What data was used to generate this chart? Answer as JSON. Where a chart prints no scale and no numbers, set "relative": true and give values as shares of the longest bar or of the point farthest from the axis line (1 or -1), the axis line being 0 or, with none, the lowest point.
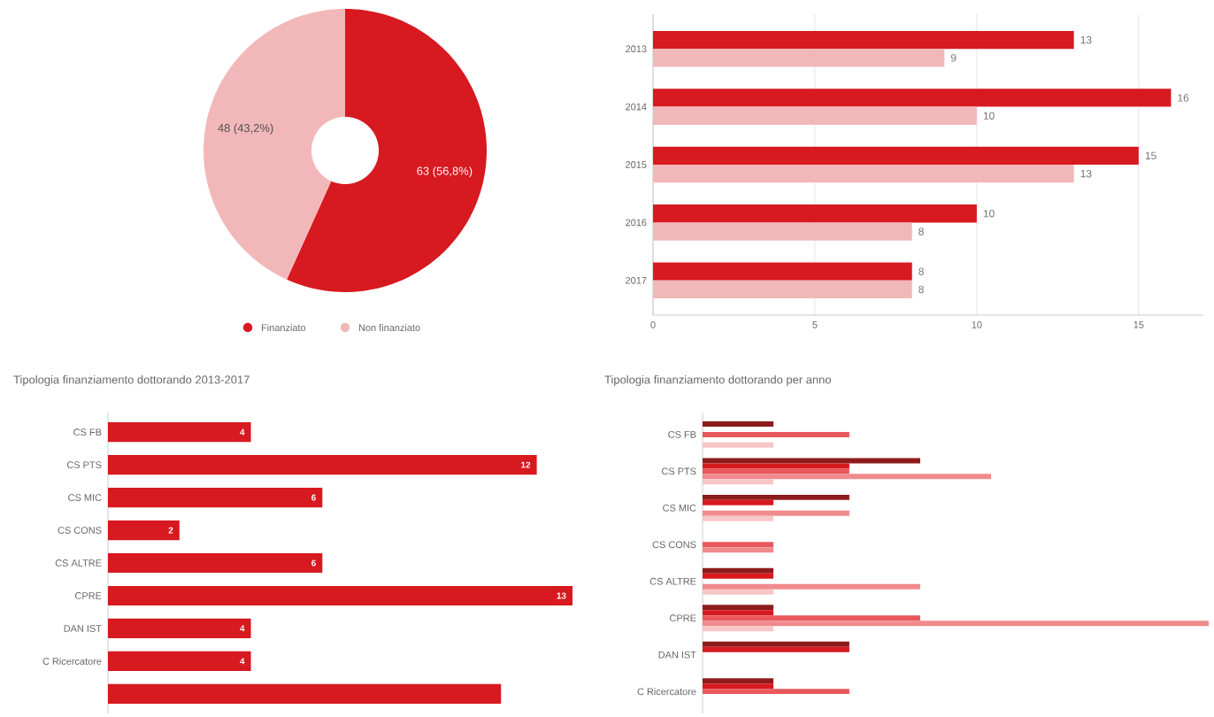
{
  "chart_data": [
    {
      "type": "donut",
      "categories": [
        "Finanziato",
        "Non finanziato"
      ],
      "values": [
        63,
        48
      ],
      "colors": [
        "#d71920",
        "#f2b8b9"
      ],
      "value_labels": [
        "63 (56,8%)",
        "48 (43,2%)"
      ],
      "legend": "bottom"
    },
    {
      "type": "bar",
      "orientation": "horizontal",
      "categories": [
        "2013",
        "2014",
        "2015",
        "2016",
        "2017"
      ],
      "series": [
        {
          "color": "#d71920",
          "values": [
            13,
            16,
            15,
            10,
            8
          ]
        },
        {
          "color": "#f2b8b9",
          "values": [
            9,
            10,
            13,
            8,
            8
          ]
        }
      ],
      "xlim": [
        0,
        17
      ],
      "xticks": [
        0,
        5,
        10,
        15
      ],
      "grid": "x",
      "data_labels": true
    },
    {
      "type": "bar",
      "orientation": "horizontal",
      "title": "Tipologia finanziamento dottorando 2013-2017",
      "categories": [
        "CS FB",
        "CS PTS",
        "CS MIC",
        "CS CONS",
        "CS ALTRE",
        "CPRE",
        "DAN IST",
        "C Ricercatore",
        null
      ],
      "values": [
        4,
        12,
        6,
        2,
        6,
        13,
        4,
        4,
        11
      ],
      "value_labels": [
        "4",
        "12",
        "6",
        "2",
        "6",
        "13",
        "4",
        "4",
        null
      ],
      "color": "#d71920",
      "tick_labels": "y"
    },
    {
      "type": "bar",
      "orientation": "horizontal",
      "title": "Tipologia finanziamento dottorando per anno",
      "categories": [
        "CS FB",
        "CS PTS",
        "CS MIC",
        "CS CONS",
        "CS ALTRE",
        "CPRE",
        "DAN IST",
        "C Ricercatore"
      ],
      "relative": true,
      "tick_labels": "y",
      "series": [
        {
          "color": "#8e1b1b",
          "values": [
            0.14,
            0.43,
            0.29,
            0,
            0.14,
            0.14,
            0.29,
            0.14
          ]
        },
        {
          "color": "#d71920",
          "values": [
            0,
            0.29,
            0.14,
            0,
            0.14,
            0.14,
            0.29,
            0.14
          ]
        },
        {
          "color": "#e8585c",
          "values": [
            0.29,
            0.29,
            0,
            0.14,
            0,
            0.43,
            0,
            0.29
          ]
        },
        {
          "color": "#f08a8c",
          "values": [
            0,
            0.57,
            0.29,
            0.14,
            0.43,
            1,
            0,
            0
          ]
        },
        {
          "color": "#f7c6c7",
          "values": [
            0.14,
            0.14,
            0.14,
            0,
            0.14,
            0.14,
            0,
            0
          ]
        }
      ]
    }
  ]
}
